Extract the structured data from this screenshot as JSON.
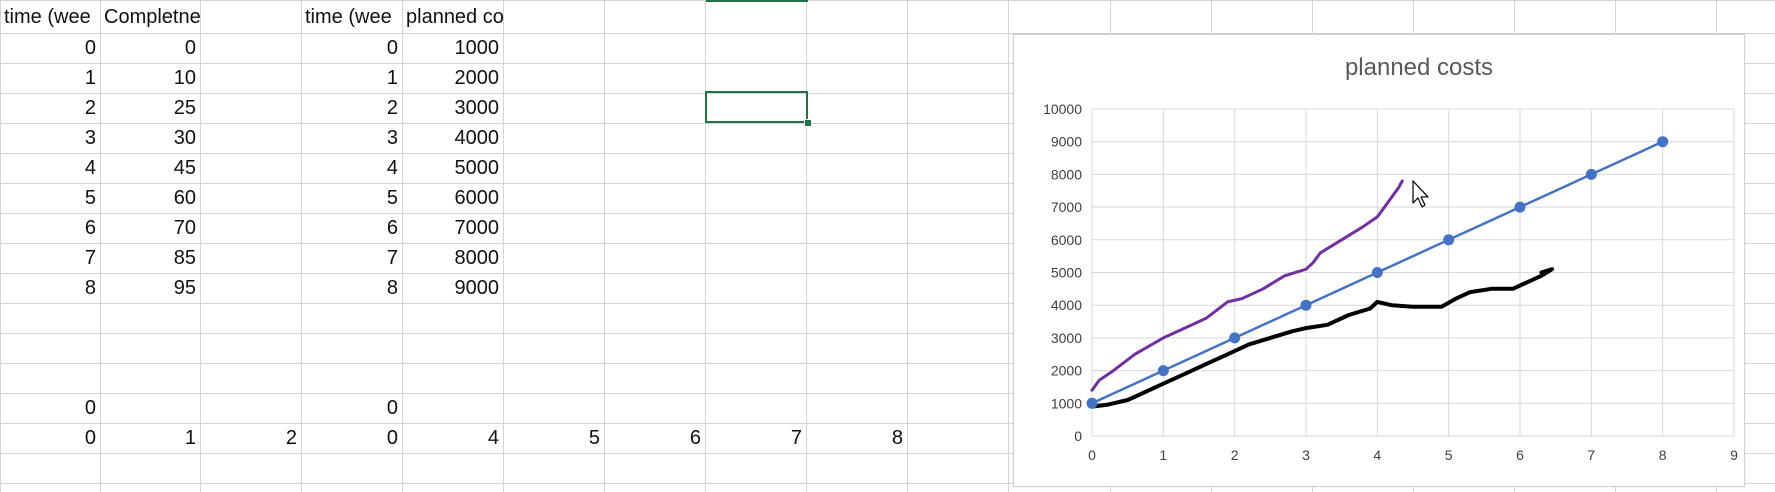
{
  "sheet": {
    "rows": [
      [
        "time (wee",
        "Completness",
        "",
        "time (wee",
        "planned costs"
      ],
      [
        "0",
        "0",
        "",
        "0",
        "1000"
      ],
      [
        "1",
        "10",
        "",
        "1",
        "2000"
      ],
      [
        "2",
        "25",
        "",
        "2",
        "3000"
      ],
      [
        "3",
        "30",
        "",
        "3",
        "4000"
      ],
      [
        "4",
        "45",
        "",
        "4",
        "5000"
      ],
      [
        "5",
        "60",
        "",
        "5",
        "6000"
      ],
      [
        "6",
        "70",
        "",
        "6",
        "7000"
      ],
      [
        "7",
        "85",
        "",
        "7",
        "8000"
      ],
      [
        "8",
        "95",
        "",
        "8",
        "9000"
      ]
    ],
    "stray_zero_row": [
      "0",
      "",
      "",
      "0"
    ],
    "bottom_row": [
      "0",
      "1",
      "2",
      "0",
      "4",
      "5",
      "6",
      "7",
      "8"
    ]
  },
  "colors": {
    "gridline": "#d4d4d4",
    "selection": "#217346",
    "series_line": "#4472C4",
    "annotation_purple": "#7030A0",
    "annotation_black": "#000000"
  },
  "chart_data": {
    "type": "line",
    "title": "planned costs",
    "xlabel": "",
    "ylabel": "",
    "xlim": [
      0,
      9
    ],
    "ylim": [
      0,
      10000
    ],
    "x_ticks": [
      0,
      1,
      2,
      3,
      4,
      5,
      6,
      7,
      8,
      9
    ],
    "y_ticks": [
      0,
      1000,
      2000,
      3000,
      4000,
      5000,
      6000,
      7000,
      8000,
      9000,
      10000
    ],
    "grid": true,
    "legend": "none",
    "series": [
      {
        "x": [
          0,
          1,
          2,
          3,
          4,
          5,
          6,
          7,
          8
        ],
        "values": [
          1000,
          2000,
          3000,
          4000,
          5000,
          6000,
          7000,
          8000,
          9000
        ],
        "color": "#4472C4",
        "markers": true
      }
    ],
    "annotations": [
      {
        "kind": "freehand",
        "color": "#7030A0",
        "points": [
          [
            0.0,
            1400
          ],
          [
            0.1,
            1700
          ],
          [
            0.3,
            2000
          ],
          [
            0.6,
            2500
          ],
          [
            1.0,
            3000
          ],
          [
            1.3,
            3300
          ],
          [
            1.6,
            3600
          ],
          [
            1.9,
            4100
          ],
          [
            2.1,
            4200
          ],
          [
            2.4,
            4500
          ],
          [
            2.7,
            4900
          ],
          [
            3.0,
            5100
          ],
          [
            3.1,
            5300
          ],
          [
            3.2,
            5600
          ],
          [
            3.5,
            6000
          ],
          [
            3.8,
            6400
          ],
          [
            4.0,
            6700
          ],
          [
            4.1,
            7000
          ],
          [
            4.2,
            7300
          ],
          [
            4.3,
            7600
          ],
          [
            4.35,
            7800
          ]
        ]
      },
      {
        "kind": "freehand",
        "color": "#000000",
        "points": [
          [
            0.0,
            900
          ],
          [
            0.2,
            950
          ],
          [
            0.5,
            1100
          ],
          [
            0.8,
            1400
          ],
          [
            1.0,
            1600
          ],
          [
            1.3,
            1900
          ],
          [
            1.6,
            2200
          ],
          [
            1.9,
            2500
          ],
          [
            2.2,
            2800
          ],
          [
            2.5,
            3000
          ],
          [
            2.8,
            3200
          ],
          [
            3.0,
            3300
          ],
          [
            3.3,
            3400
          ],
          [
            3.6,
            3700
          ],
          [
            3.9,
            3900
          ],
          [
            4.0,
            4100
          ],
          [
            4.2,
            4000
          ],
          [
            4.5,
            3950
          ],
          [
            4.9,
            3950
          ],
          [
            5.1,
            4200
          ],
          [
            5.3,
            4400
          ],
          [
            5.6,
            4500
          ],
          [
            5.9,
            4500
          ],
          [
            6.1,
            4700
          ],
          [
            6.3,
            4900
          ],
          [
            6.45,
            5100
          ],
          [
            6.3,
            5000
          ]
        ]
      }
    ]
  }
}
